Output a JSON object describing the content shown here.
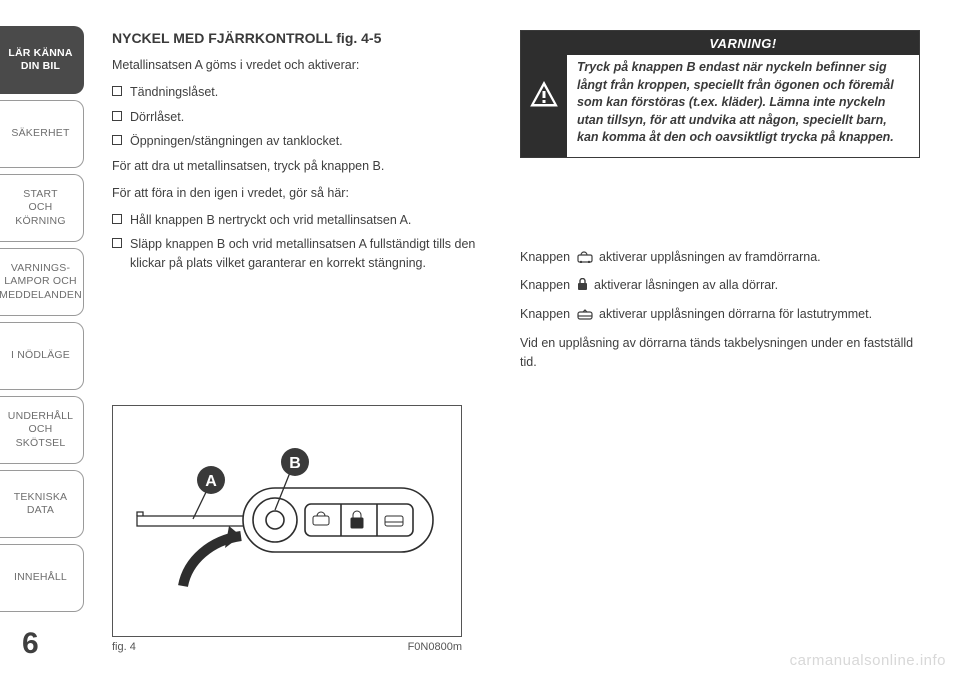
{
  "tabs": [
    {
      "label": "LÄR KÄNNA\nDIN BIL",
      "active": true
    },
    {
      "label": "SÄKERHET",
      "active": false
    },
    {
      "label": "START\nOCH KÖRNING",
      "active": false
    },
    {
      "label": "VARNINGS-\nLAMPOR OCH\nMEDDELANDEN",
      "active": false
    },
    {
      "label": "I NÖDLÄGE",
      "active": false
    },
    {
      "label": "UNDERHÅLL\nOCH SKÖTSEL",
      "active": false
    },
    {
      "label": "TEKNISKA DATA",
      "active": false
    },
    {
      "label": "INNEHÅLL",
      "active": false
    }
  ],
  "page_number": "6",
  "left": {
    "heading": "NYCKEL MED FJÄRRKONTROLL fig. 4-5",
    "intro": "Metallinsatsen A göms i vredet och aktiverar:",
    "bullets1": [
      "Tändningslåset.",
      "Dörrlåset.",
      "Öppningen/stängningen av tanklocket."
    ],
    "line1": "För att dra ut metallinsatsen, tryck på knappen B.",
    "line2": "För att föra in den igen i vredet, gör så här:",
    "bullets2": [
      "Håll knappen B nertryckt och vrid metallinsatsen A.",
      "Släpp knappen B och vrid metallinsatsen A fullständigt tills den klickar på plats vilket garanterar en korrekt stängning."
    ]
  },
  "figure": {
    "caption": "fig. 4",
    "code": "F0N0800m",
    "label_A": "A",
    "label_B": "B",
    "colors": {
      "stroke": "#2e2e2e",
      "fill": "#ffffff",
      "circle_fill": "#3a3a3a",
      "circle_text": "#ffffff"
    }
  },
  "warning": {
    "title": "VARNING!",
    "body": "Tryck på knappen B endast när nyckeln befinner sig långt från kroppen, speciellt från ögonen och föremål som kan förstöras (t.ex. kläder). Lämna inte nyckeln utan tillsyn, för att undvika att någon, speciellt barn, kan komma åt den och oavsiktligt trycka på knappen."
  },
  "right_paras": {
    "p1a": "Knappen ",
    "p1b": " aktiverar upplåsningen av framdörrarna.",
    "p2a": "Knappen ",
    "p2b": " aktiverar låsningen av alla dörrar.",
    "p3a": "Knappen ",
    "p3b": " aktiverar upplåsningen dörrarna för lastutrymmet.",
    "p4": "Vid en upplåsning av dörrarna tänds takbelysningen under en fastställd tid."
  },
  "watermark": "carmanualsonline.info",
  "style": {
    "page_bg": "#ffffff",
    "text_color": "#3e3e3e",
    "tab_border": "#9a9a9a",
    "tab_active_bg": "#4a4a4a",
    "warning_bg": "#2e2e2e"
  }
}
